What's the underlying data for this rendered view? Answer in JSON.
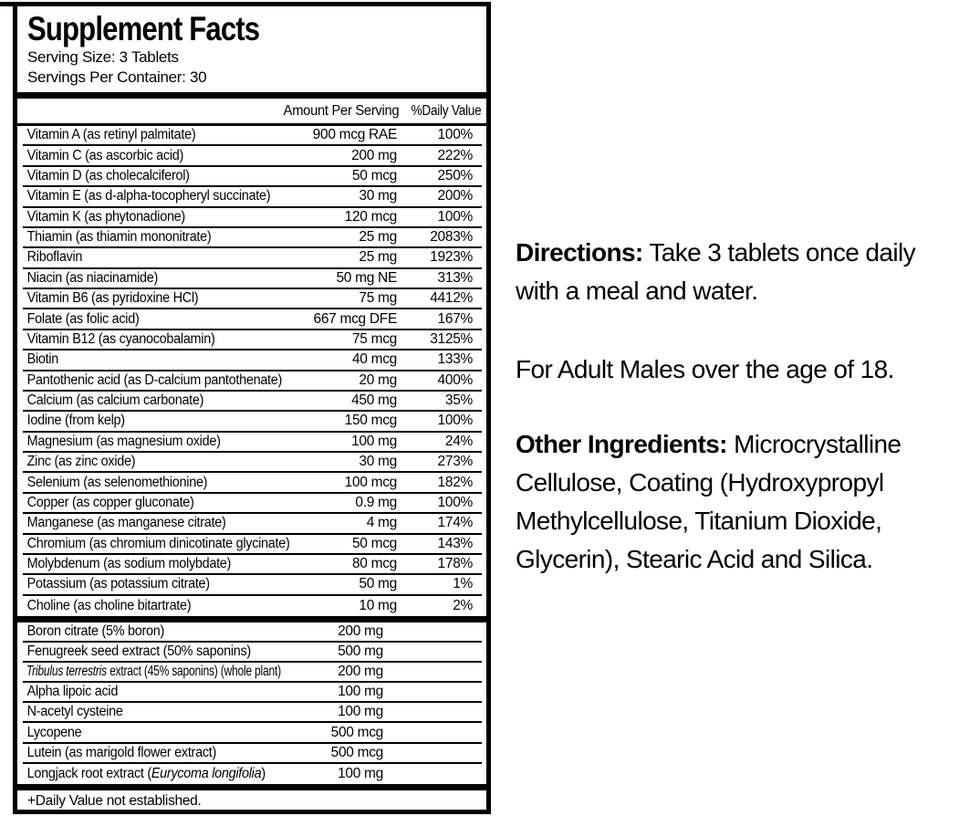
{
  "label": {
    "title": "Supplement Facts",
    "serving_size": "Serving Size: 3 Tablets",
    "servings_per_container": "Servings Per Container: 30",
    "header": {
      "amount": "Amount Per Serving",
      "daily_value": "%Daily Value"
    },
    "nutrients": [
      {
        "name": "Vitamin A (as retinyl palmitate)",
        "amount": "900 mcg RAE",
        "daily_value": "100%"
      },
      {
        "name": "Vitamin C (as ascorbic acid)",
        "amount": "200 mg",
        "daily_value": "222%"
      },
      {
        "name": "Vitamin D (as cholecalciferol)",
        "amount": "50 mcg",
        "daily_value": "250%"
      },
      {
        "name": "Vitamin E (as d-alpha-tocopheryl succinate)",
        "amount": "30 mg",
        "daily_value": "200%"
      },
      {
        "name": "Vitamin K (as phytonadione)",
        "amount": "120 mcg",
        "daily_value": "100%"
      },
      {
        "name": "Thiamin (as thiamin mononitrate)",
        "amount": "25 mg",
        "daily_value": "2083%"
      },
      {
        "name": "Riboflavin",
        "amount": "25 mg",
        "daily_value": "1923%"
      },
      {
        "name": "Niacin (as niacinamide)",
        "amount": "50 mg NE",
        "daily_value": "313%"
      },
      {
        "name": "Vitamin B6 (as pyridoxine HCl)",
        "amount": "75 mg",
        "daily_value": "4412%"
      },
      {
        "name": "Folate (as folic acid)",
        "amount": "667 mcg DFE",
        "daily_value": "167%"
      },
      {
        "name": "Vitamin B12 (as cyanocobalamin)",
        "amount": "75 mcg",
        "daily_value": "3125%"
      },
      {
        "name": "Biotin",
        "amount": "40 mcg",
        "daily_value": "133%"
      },
      {
        "name": "Pantothenic acid (as D-calcium pantothenate)",
        "amount": "20 mg",
        "daily_value": "400%"
      },
      {
        "name": "Calcium (as calcium carbonate)",
        "amount": "450 mg",
        "daily_value": "35%"
      },
      {
        "name": "Iodine (from kelp)",
        "amount": "150 mcg",
        "daily_value": "100%"
      },
      {
        "name": "Magnesium (as magnesium oxide)",
        "amount": "100 mg",
        "daily_value": "24%"
      },
      {
        "name": "Zinc (as zinc oxide)",
        "amount": "30 mg",
        "daily_value": "273%"
      },
      {
        "name": "Selenium (as selenomethionine)",
        "amount": "100 mcg",
        "daily_value": "182%"
      },
      {
        "name": "Copper (as copper gluconate)",
        "amount": "0.9 mg",
        "daily_value": "100%"
      },
      {
        "name": "Manganese (as manganese citrate)",
        "amount": "4 mg",
        "daily_value": "174%"
      },
      {
        "name": "Chromium (as chromium dinicotinate glycinate)",
        "amount": "50 mcg",
        "daily_value": "143%"
      },
      {
        "name": "Molybdenum (as sodium molybdate)",
        "amount": "80 mcg",
        "daily_value": "178%"
      },
      {
        "name": "Potassium (as potassium citrate)",
        "amount": "50 mg",
        "daily_value": "1%"
      },
      {
        "name": "Choline (as choline bitartrate)",
        "amount": "10 mg",
        "daily_value": "2%"
      }
    ],
    "blend": [
      {
        "name": "Boron citrate (5% boron)",
        "amount": "200 mg",
        "daily_value": ""
      },
      {
        "name": "Fenugreek seed extract (50% saponins)",
        "amount": "500 mg",
        "daily_value": ""
      },
      {
        "name_parts": [
          {
            "text": "Tribulus terrestris",
            "italic": true
          },
          {
            "text": " extract (45% saponins) (whole plant)",
            "italic": false
          }
        ],
        "condensed": true,
        "amount": "200 mg",
        "daily_value": ""
      },
      {
        "name": "Alpha lipoic acid",
        "amount": "100 mg",
        "daily_value": ""
      },
      {
        "name": "N-acetyl cysteine",
        "amount": "100 mg",
        "daily_value": ""
      },
      {
        "name": "Lycopene",
        "amount": "500 mcg",
        "daily_value": ""
      },
      {
        "name": "Lutein (as marigold flower extract)",
        "amount": "500 mcg",
        "daily_value": ""
      },
      {
        "name_parts": [
          {
            "text": "Longjack root extract (",
            "italic": false
          },
          {
            "text": "Eurycoma longifolia",
            "italic": true
          },
          {
            "text": ")",
            "italic": false
          }
        ],
        "amount": "100 mg",
        "daily_value": ""
      }
    ],
    "footnote": "+Daily Value not established."
  },
  "info_panel": {
    "directions_label": "Directions:",
    "directions_text": "Take 3 tablets once daily with a meal and water.",
    "audience_text": "For Adult Males over the age of 18.",
    "other_ingredients_label": "Other Ingredients:",
    "other_ingredients_text": "Microcrystalline Cellulose, Coating (Hydroxypropyl Methylcellulose, Titanium Dioxide, Glycerin), Stearic Acid and Silica."
  },
  "colors": {
    "ink": "#000000",
    "paper": "#ffffff"
  }
}
